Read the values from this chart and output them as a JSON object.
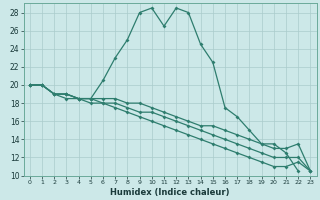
{
  "xlabel": "Humidex (Indice chaleur)",
  "bg_color": "#cce8e8",
  "line_color": "#2e7d6e",
  "grid_color": "#aacccc",
  "xlim": [
    -0.5,
    23.5
  ],
  "ylim": [
    10,
    29
  ],
  "yticks": [
    10,
    12,
    14,
    16,
    18,
    20,
    22,
    24,
    26,
    28
  ],
  "xticks": [
    0,
    1,
    2,
    3,
    4,
    5,
    6,
    7,
    8,
    9,
    10,
    11,
    12,
    13,
    14,
    15,
    16,
    17,
    18,
    19,
    20,
    21,
    22,
    23
  ],
  "series0_x": [
    0,
    1,
    2,
    3,
    4,
    5,
    6,
    7,
    8,
    9,
    10,
    11,
    12,
    13,
    14,
    15,
    16,
    17,
    18,
    19,
    20,
    21,
    22
  ],
  "series0_y": [
    20.0,
    20.0,
    19.0,
    19.0,
    18.5,
    18.5,
    20.5,
    23.0,
    25.0,
    28.0,
    28.5,
    26.5,
    28.5,
    28.0,
    24.5,
    22.5,
    17.5,
    16.5,
    15.0,
    13.5,
    13.5,
    12.5,
    10.5
  ],
  "series0_marker_x": [
    0,
    1,
    2,
    3,
    4,
    5,
    6,
    7,
    8,
    9,
    10,
    11,
    12,
    13,
    14,
    15,
    16,
    17,
    18,
    19,
    20,
    21,
    22
  ],
  "series1_x": [
    0,
    1,
    2,
    3,
    4,
    5,
    6,
    7,
    8,
    9,
    10,
    11,
    12,
    13,
    14,
    15,
    16,
    17,
    18,
    19,
    20,
    21,
    22,
    23
  ],
  "series1_y": [
    20.0,
    20.0,
    19.0,
    19.0,
    18.5,
    18.5,
    18.5,
    18.5,
    18.0,
    18.0,
    17.5,
    17.0,
    16.5,
    16.0,
    15.5,
    15.5,
    15.0,
    14.5,
    14.0,
    13.5,
    13.0,
    13.0,
    13.5,
    10.5
  ],
  "series2_x": [
    0,
    1,
    2,
    3,
    4,
    5,
    6,
    7,
    8,
    9,
    10,
    11,
    12,
    13,
    14,
    15,
    16,
    17,
    18,
    19,
    20,
    21,
    22,
    23
  ],
  "series2_y": [
    20.0,
    20.0,
    19.0,
    19.0,
    18.5,
    18.5,
    18.0,
    18.0,
    17.5,
    17.0,
    17.0,
    16.5,
    16.0,
    15.5,
    15.0,
    14.5,
    14.0,
    13.5,
    13.0,
    12.5,
    12.0,
    12.0,
    12.0,
    10.5
  ],
  "series3_x": [
    0,
    1,
    2,
    3,
    4,
    5,
    6,
    7,
    8,
    9,
    10,
    11,
    12,
    13,
    14,
    15,
    16,
    17,
    18,
    19,
    20,
    21,
    22,
    23
  ],
  "series3_y": [
    20.0,
    20.0,
    19.0,
    18.5,
    18.5,
    18.0,
    18.0,
    17.5,
    17.0,
    16.5,
    16.0,
    15.5,
    15.0,
    14.5,
    14.0,
    13.5,
    13.0,
    12.5,
    12.0,
    11.5,
    11.0,
    11.0,
    11.5,
    10.5
  ]
}
